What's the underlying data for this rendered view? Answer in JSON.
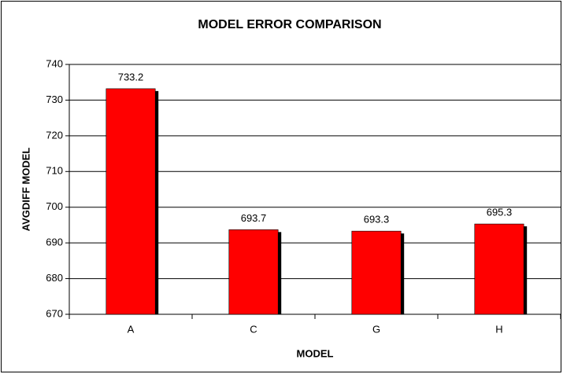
{
  "chart_data": {
    "type": "bar",
    "title": "MODEL ERROR COMPARISON",
    "x_label": "MODEL",
    "y_label": "AVGDIFF MODEL",
    "categories": [
      "A",
      "C",
      "G",
      "H"
    ],
    "values": [
      733.2,
      693.7,
      693.3,
      695.3
    ],
    "color": "#ff0000",
    "ylim": [
      670,
      740
    ],
    "yticks": [
      670,
      680,
      690,
      700,
      710,
      720,
      730,
      740
    ],
    "grid": true
  }
}
